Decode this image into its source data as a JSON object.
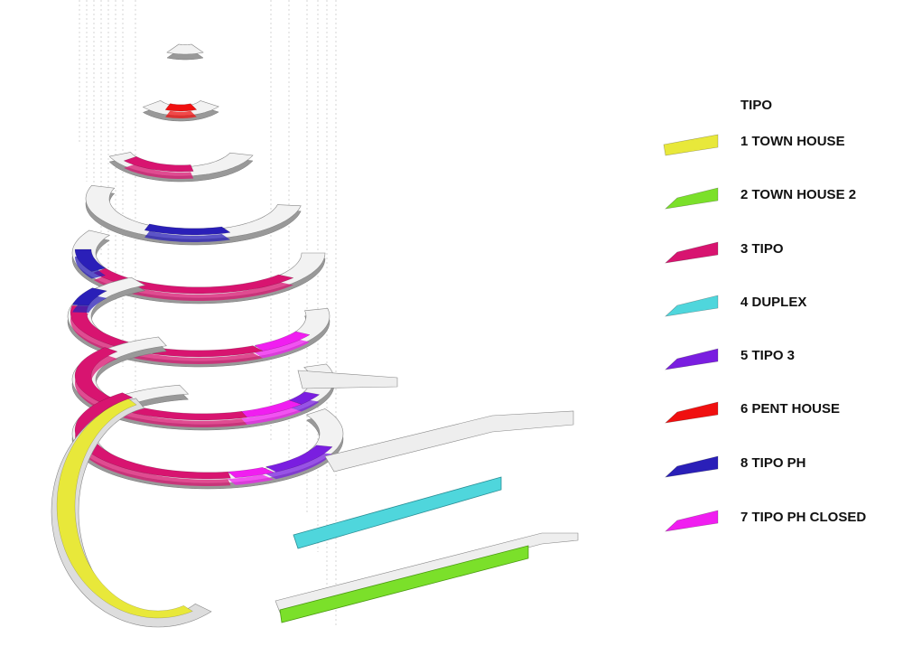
{
  "legend": {
    "title": "TIPO",
    "items": [
      {
        "label": "1 TOWN HOUSE",
        "color": "#e8e83a"
      },
      {
        "label": "2 TOWN HOUSE 2",
        "color": "#7be02a"
      },
      {
        "label": "3 TIPO",
        "color": "#d81470"
      },
      {
        "label": "4 DUPLEX",
        "color": "#4fd6dc"
      },
      {
        "label": "5 TIPO 3",
        "color": "#7a1ee0"
      },
      {
        "label": "6 PENT HOUSE",
        "color": "#f01010"
      },
      {
        "label": "8 TIPO PH",
        "color": "#2a1fb8"
      },
      {
        "label": "7 TIPO PH CLOSED",
        "color": "#f01ef0"
      }
    ]
  }
}
